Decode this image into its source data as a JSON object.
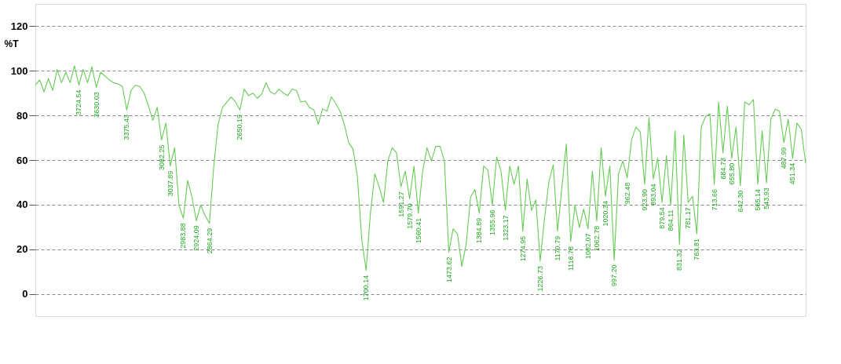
{
  "chart_data": {
    "type": "line",
    "ylabel": "%T",
    "ylim": [
      -10,
      130
    ],
    "yticks": [
      0,
      20,
      40,
      60,
      80,
      100,
      120
    ],
    "grid": "y",
    "marker": "none",
    "categories": [
      null,
      null,
      null,
      null,
      null,
      null,
      null,
      null,
      null,
      null,
      "3724.54",
      null,
      null,
      null,
      "3630.03",
      null,
      null,
      null,
      null,
      null,
      null,
      "3375.43",
      null,
      null,
      null,
      null,
      null,
      null,
      null,
      "3082.25",
      null,
      "3037.89",
      null,
      null,
      "2983.88",
      null,
      null,
      "2924.09",
      null,
      null,
      "2864.29",
      null,
      null,
      null,
      null,
      null,
      null,
      "2650.19",
      null,
      null,
      null,
      null,
      null,
      null,
      null,
      null,
      null,
      null,
      null,
      null,
      null,
      null,
      null,
      null,
      null,
      null,
      null,
      null,
      null,
      null,
      null,
      null,
      null,
      null,
      null,
      null,
      "1700.14",
      null,
      null,
      null,
      null,
      null,
      null,
      null,
      "1591.27",
      null,
      "1579.70",
      null,
      "1560.41",
      null,
      null,
      null,
      null,
      null,
      null,
      "1473.62",
      null,
      null,
      null,
      null,
      null,
      null,
      "1384.89",
      null,
      null,
      "1355.96",
      null,
      null,
      "1323.17",
      null,
      null,
      null,
      "1274.95",
      null,
      null,
      null,
      "1226.73",
      null,
      null,
      null,
      "1170.79",
      null,
      null,
      "1116.78",
      null,
      null,
      null,
      "1082.07",
      null,
      "1062.78",
      null,
      "1020.34",
      null,
      "997.20",
      null,
      null,
      "962.48",
      null,
      null,
      null,
      "923.90",
      null,
      "893.04",
      null,
      "879.54",
      null,
      "864.11",
      null,
      "831.32",
      null,
      "781.17",
      null,
      "763.81",
      null,
      null,
      null,
      "713.66",
      null,
      "684.73",
      null,
      "655.80",
      null,
      "642.30",
      null,
      null,
      null,
      "565.14",
      null,
      "543.93",
      null,
      null,
      null,
      "487.99",
      null,
      "451.34",
      null,
      null,
      null
    ],
    "series": [
      {
        "color": "#66cc55",
        "values": [
          93.6,
          95.9,
          90.6,
          96.5,
          91.2,
          100.6,
          94.7,
          99.4,
          94.7,
          102.3,
          93.6,
          100.6,
          94.7,
          101.8,
          92.6,
          99.4,
          97.7,
          95.9,
          94.7,
          94.1,
          93.0,
          82.5,
          91.2,
          93.6,
          93.0,
          90.0,
          84.2,
          77.8,
          83.6,
          69.0,
          76.6,
          57.3,
          65.5,
          39.8,
          33.9,
          50.9,
          43.3,
          32.8,
          39.8,
          35.1,
          31.6,
          57.3,
          76.0,
          83.6,
          86.0,
          88.3,
          86.0,
          82.5,
          91.8,
          88.9,
          90.0,
          87.7,
          89.5,
          94.7,
          90.6,
          89.5,
          91.8,
          90.0,
          88.9,
          91.8,
          91.2,
          86.0,
          86.5,
          83.6,
          82.5,
          76.0,
          83.0,
          81.9,
          88.3,
          85.4,
          81.9,
          76.0,
          67.8,
          64.9,
          52.6,
          24.6,
          10.5,
          36.2,
          53.8,
          48.0,
          40.9,
          59.6,
          65.5,
          63.2,
          48.0,
          55.0,
          42.7,
          57.3,
          36.2,
          55.0,
          65.5,
          59.6,
          66.1,
          66.1,
          59.6,
          18.7,
          29.2,
          26.9,
          12.3,
          22.2,
          43.3,
          46.8,
          36.2,
          57.3,
          55.5,
          39.8,
          61.4,
          55.0,
          37.4,
          57.3,
          49.1,
          57.3,
          28.1,
          51.5,
          37.4,
          42.1,
          14.6,
          33.9,
          50.3,
          57.9,
          28.1,
          48.0,
          67.2,
          23.4,
          39.8,
          29.8,
          38.0,
          29.2,
          55.0,
          32.7,
          65.5,
          43.8,
          57.3,
          15.2,
          53.8,
          59.6,
          52.0,
          69.0,
          74.8,
          72.5,
          49.1,
          79.0,
          51.5,
          60.8,
          40.9,
          62.0,
          39.8,
          73.1,
          22.2,
          71.3,
          40.9,
          43.8,
          26.9,
          74.8,
          79.5,
          80.7,
          49.1,
          86.0,
          63.2,
          84.2,
          60.8,
          74.8,
          48.5,
          86.0,
          84.8,
          87.1,
          49.1,
          73.1,
          49.7,
          78.4,
          82.8,
          81.9,
          67.8,
          78.4,
          60.8,
          76.6,
          73.7,
          58.5
        ]
      }
    ]
  }
}
